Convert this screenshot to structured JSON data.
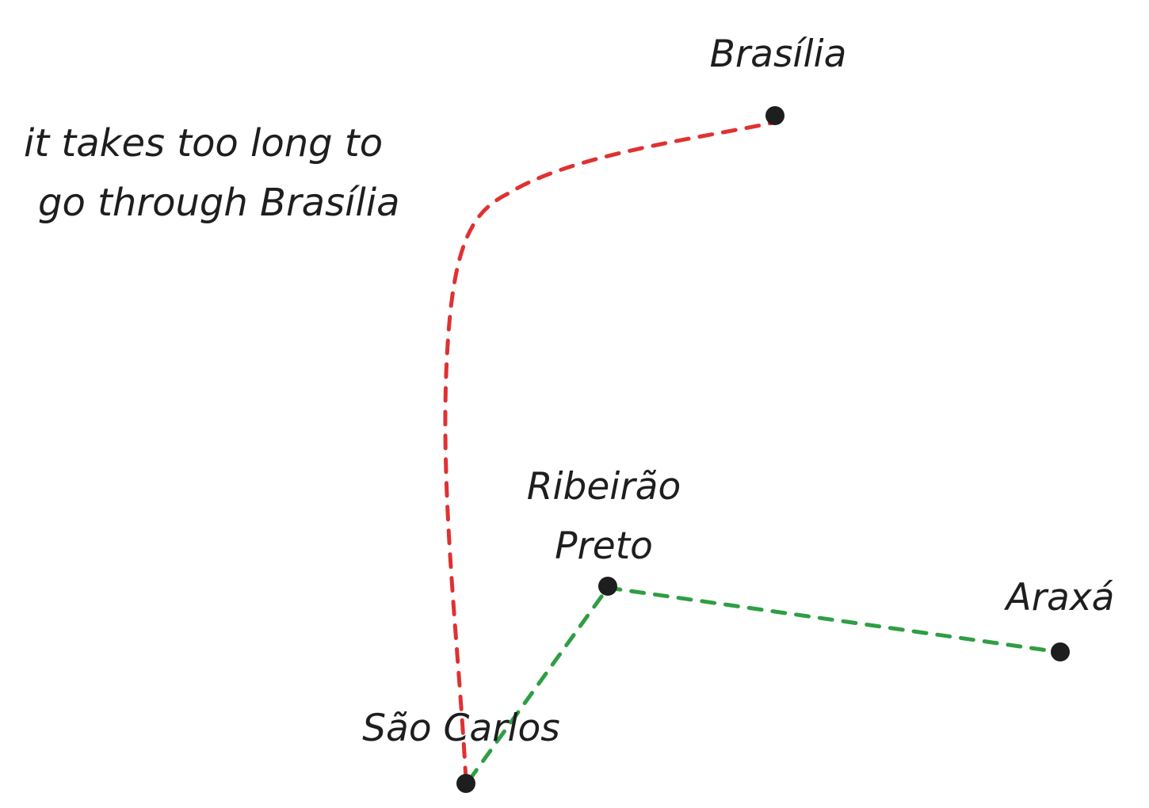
{
  "colors": {
    "ink": "#1e1e1e",
    "slow_route": "#e03131",
    "fast_route": "#2f9e44",
    "background": "#ffffff"
  },
  "cities": {
    "brasilia": "Brasília",
    "ribeirao_line1": "Ribeirão",
    "ribeirao_line2": "Preto",
    "araxa": "Araxá",
    "sao_carlos": "São Carlos"
  },
  "annotation": {
    "line1": "it takes too long to",
    "line2": "go through Brasília"
  }
}
